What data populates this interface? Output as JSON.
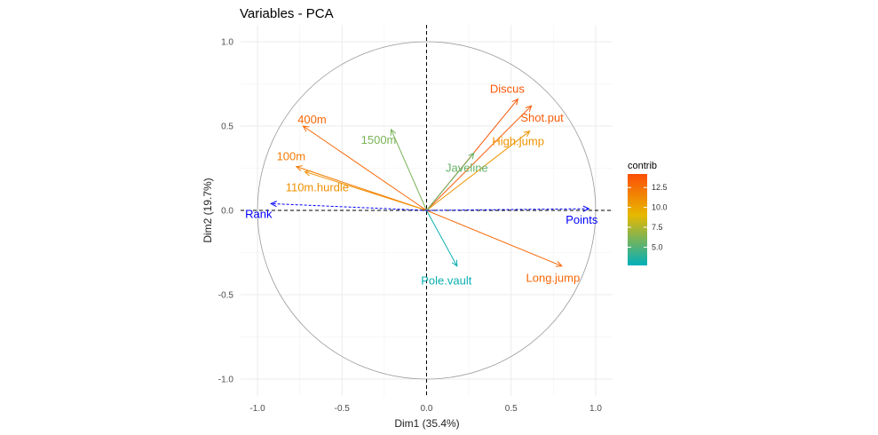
{
  "chart_data": {
    "type": "scatter",
    "subtype": "pca-variable-correlation-circle",
    "title": "Variables - PCA",
    "xlabel": "Dim1 (35.4%)",
    "ylabel": "Dim2 (19.7%)",
    "xlim": [
      -1.1,
      1.1
    ],
    "ylim": [
      -1.1,
      1.1
    ],
    "x_ticks": [
      -1.0,
      -0.5,
      0.0,
      0.5,
      1.0
    ],
    "y_ticks": [
      -1.0,
      -0.5,
      0.0,
      0.5,
      1.0
    ],
    "x_tick_labels": [
      "-1.0",
      "-0.5",
      "0.0",
      "0.5",
      "1.0"
    ],
    "y_tick_labels": [
      "-1.0",
      "-0.5",
      "0.0",
      "0.5",
      "1.0"
    ],
    "grid": true,
    "active_variables": [
      {
        "name": "400m",
        "x": -0.73,
        "y": 0.5,
        "contrib": 13.0
      },
      {
        "name": "1500m",
        "x": -0.21,
        "y": 0.48,
        "contrib": 6.0
      },
      {
        "name": "100m",
        "x": -0.77,
        "y": 0.26,
        "contrib": 12.0
      },
      {
        "name": "110m.hurdle",
        "x": -0.72,
        "y": 0.23,
        "contrib": 11.0
      },
      {
        "name": "Discus",
        "x": 0.54,
        "y": 0.66,
        "contrib": 13.8
      },
      {
        "name": "Shot.put",
        "x": 0.62,
        "y": 0.62,
        "contrib": 13.5
      },
      {
        "name": "High.jump",
        "x": 0.61,
        "y": 0.47,
        "contrib": 10.8
      },
      {
        "name": "Javeline",
        "x": 0.28,
        "y": 0.34,
        "contrib": 5.5
      },
      {
        "name": "Pole.vault",
        "x": 0.18,
        "y": -0.33,
        "contrib": 3.0
      },
      {
        "name": "Long.jump",
        "x": 0.8,
        "y": -0.33,
        "contrib": 13.0
      }
    ],
    "supplementary_variables": [
      {
        "name": "Rank",
        "x": -0.92,
        "y": 0.04
      },
      {
        "name": "Points",
        "x": 0.96,
        "y": 0.01
      }
    ],
    "legend": {
      "title": "contrib",
      "ticks": [
        5.0,
        7.5,
        10.0,
        12.5
      ],
      "tick_labels": [
        "5.0",
        "7.5",
        "10.0",
        "12.5"
      ],
      "range": [
        2.7,
        14.2
      ],
      "gradient_colors": [
        "#00AFBB",
        "#E7B800",
        "#FC4E07"
      ],
      "position": "right"
    },
    "supplementary_color": "#0000FF"
  }
}
